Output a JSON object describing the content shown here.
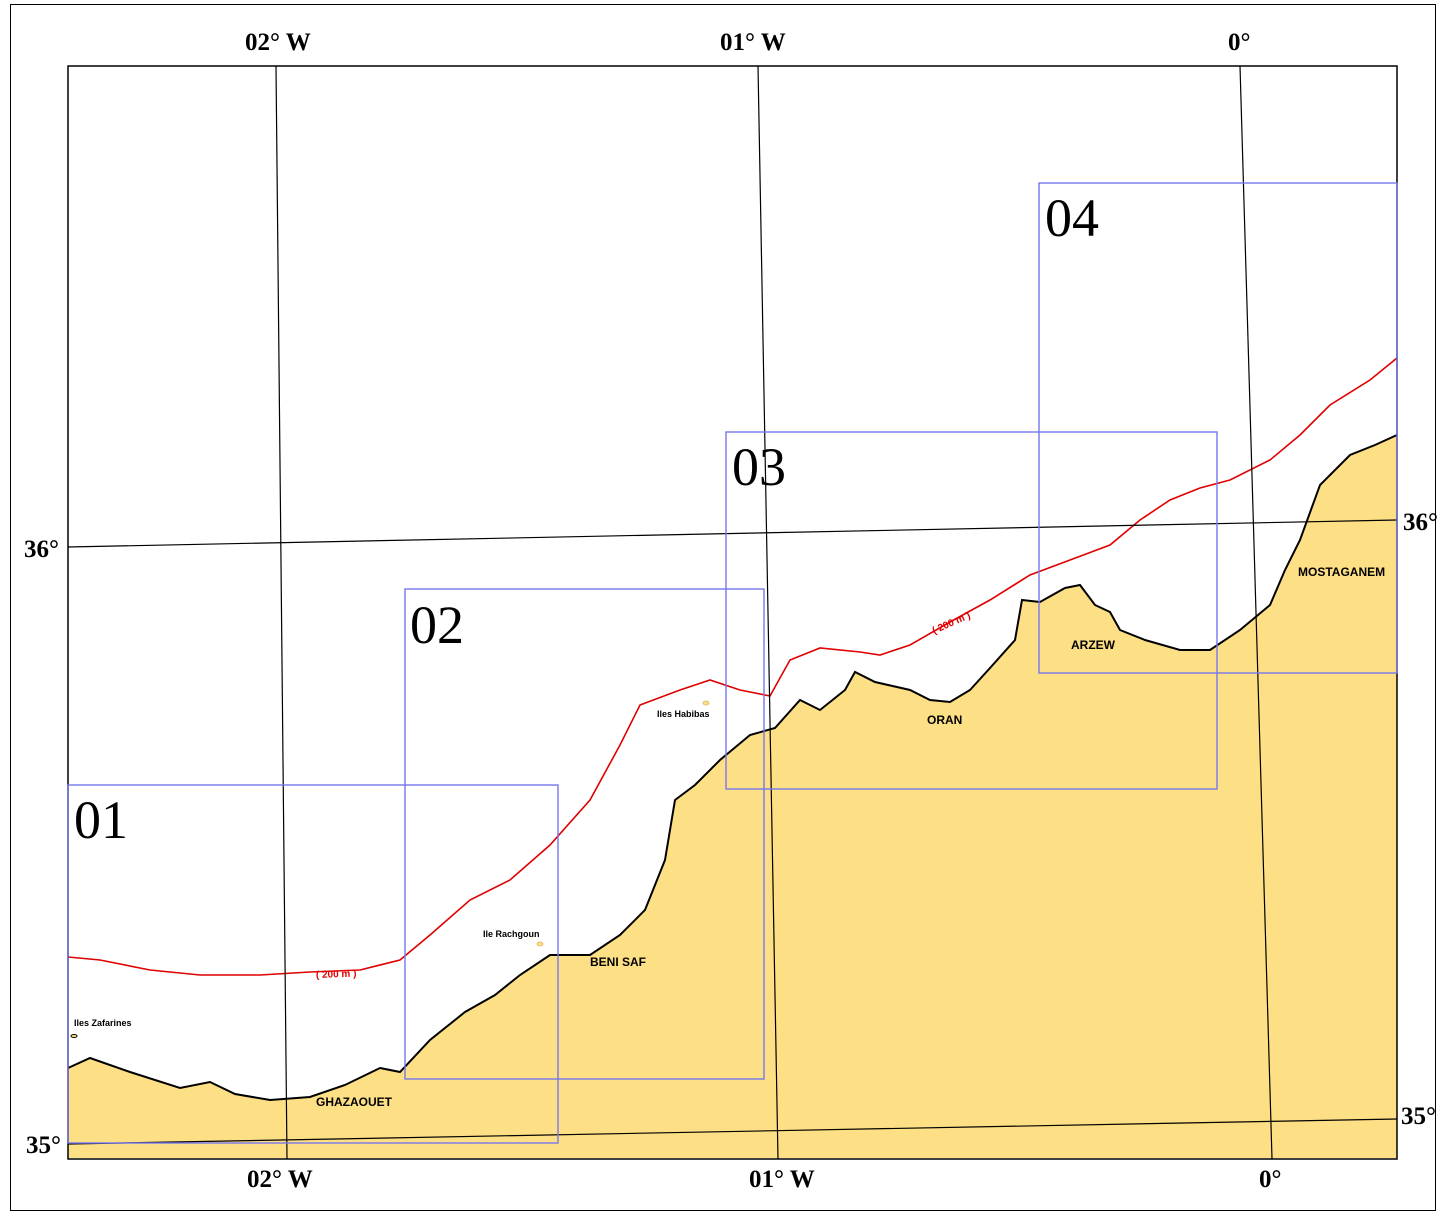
{
  "top_longitude_labels": [
    "02° W",
    "01° W",
    "0°"
  ],
  "bottom_longitude_labels": [
    "02° W",
    "01° W",
    "0°"
  ],
  "left_latitude_labels": [
    "36°",
    "35°"
  ],
  "right_latitude_labels": [
    "36°",
    "35°"
  ],
  "zones": [
    {
      "label": "01"
    },
    {
      "label": "02"
    },
    {
      "label": "03"
    },
    {
      "label": "04"
    }
  ],
  "places": {
    "ghazaouet": "GHAZAOUET",
    "beni_saf": "BENI SAF",
    "oran": "ORAN",
    "arzew": "ARZEW",
    "mostaganem": "MOSTAGANEM",
    "iles_zafarines": "Iles Zafarines",
    "ile_rachgoun": "Ile Rachgoun",
    "iles_habibas": "Iles Habibas"
  },
  "isobath_labels": [
    "( 200 m )",
    "( 200 m )"
  ],
  "colors": {
    "land": "#FDDF86",
    "isobath": "#E00000",
    "zone_box": "#7777EE",
    "graticule": "#000000"
  }
}
